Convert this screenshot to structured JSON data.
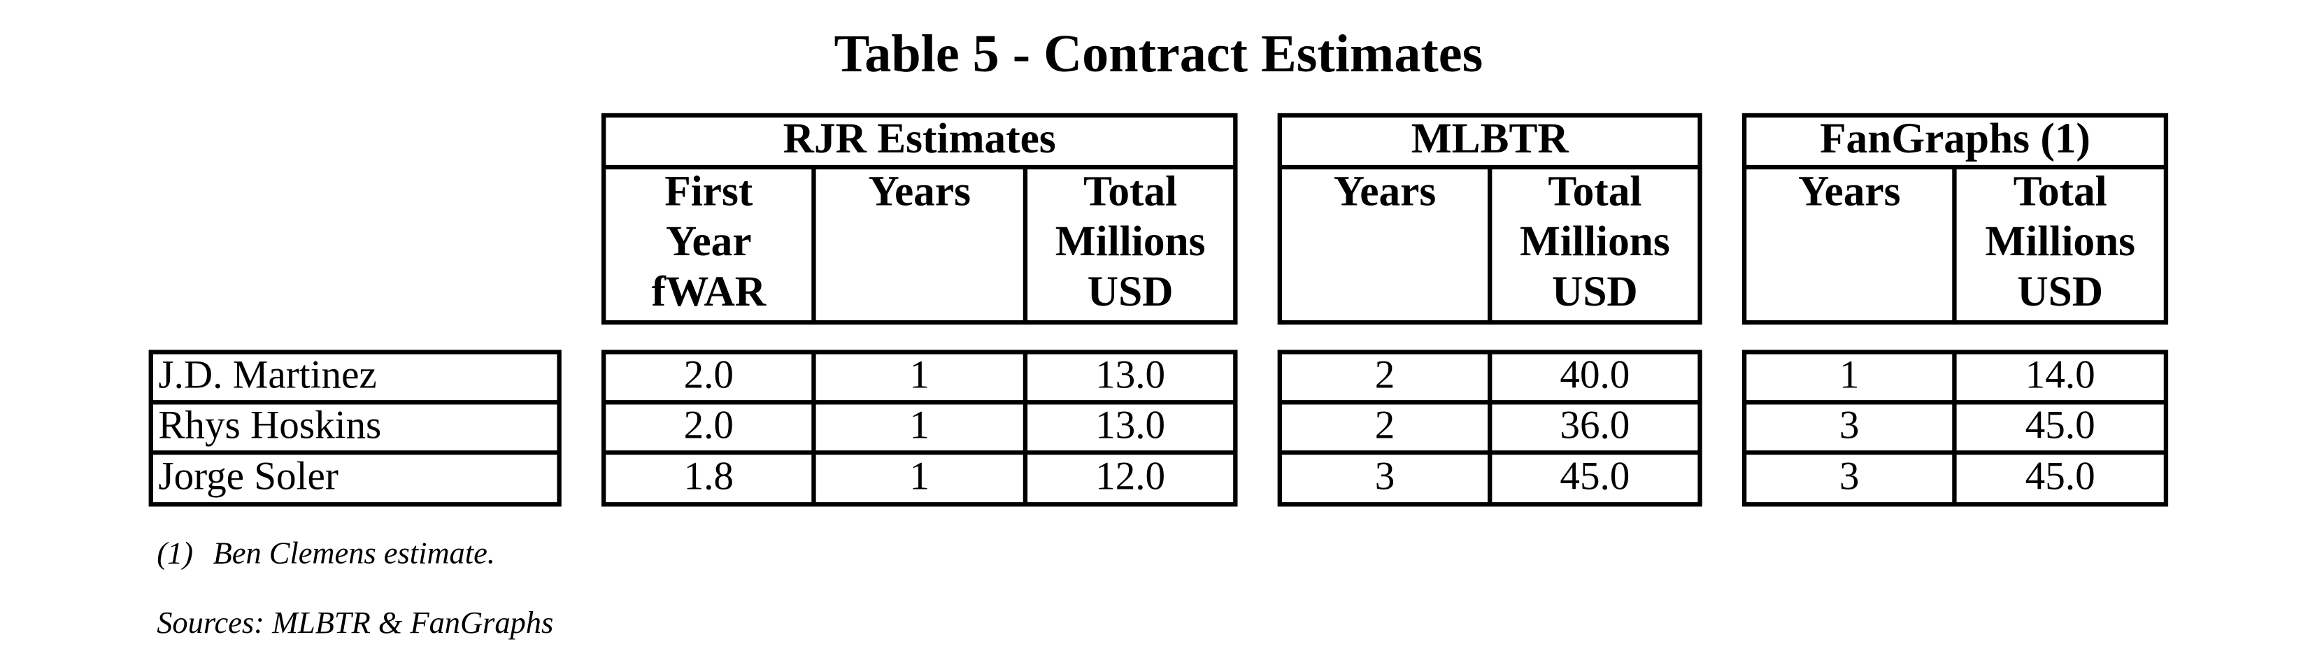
{
  "title": "Table 5 - Contract Estimates",
  "table": {
    "groups": [
      {
        "label": "RJR Estimates",
        "columns": [
          [
            "First",
            "Year",
            "fWAR"
          ],
          [
            "Years"
          ],
          [
            "Total",
            "Millions",
            "USD"
          ]
        ]
      },
      {
        "label": "MLBTR",
        "columns": [
          [
            "Years"
          ],
          [
            "Total",
            "Millions",
            "USD"
          ]
        ]
      },
      {
        "label": "FanGraphs (1)",
        "columns": [
          [
            "Years"
          ],
          [
            "Total",
            "Millions",
            "USD"
          ]
        ]
      }
    ],
    "rows": [
      {
        "name": "J.D. Martinez",
        "values": [
          "2.0",
          "1",
          "13.0",
          "2",
          "40.0",
          "1",
          "14.0"
        ]
      },
      {
        "name": "Rhys Hoskins",
        "values": [
          "2.0",
          "1",
          "13.0",
          "2",
          "36.0",
          "3",
          "45.0"
        ]
      },
      {
        "name": "Jorge Soler",
        "values": [
          "1.8",
          "1",
          "12.0",
          "3",
          "45.0",
          "3",
          "45.0"
        ]
      }
    ]
  },
  "footnote": {
    "marker": "(1)",
    "text": "Ben Clemens estimate."
  },
  "sources": "Sources: MLBTR & FanGraphs"
}
